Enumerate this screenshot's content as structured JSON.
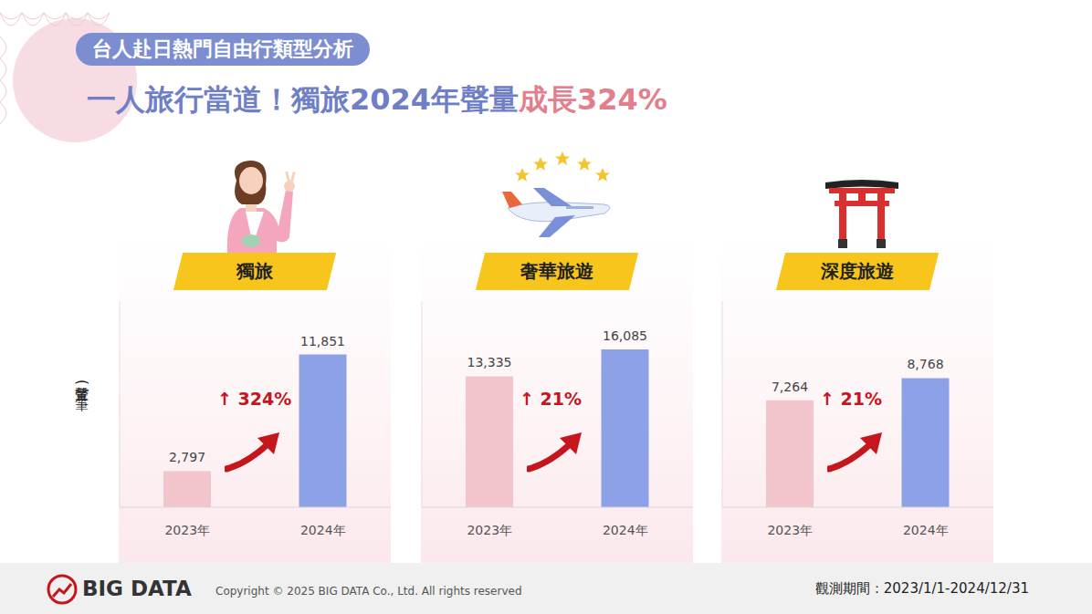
{
  "header": {
    "tag": "台人赴日熱門自由行類型分析",
    "headline": "一人旅行當道！獨旅2024年聲量",
    "headline_highlight": "成長324%"
  },
  "y_label": "聲量(筆)",
  "chart_data": [
    {
      "type": "bar",
      "title": "獨旅",
      "categories": [
        "2023年",
        "2024年"
      ],
      "values": [
        2797,
        11851
      ],
      "value_labels": [
        "2,797",
        "11,851"
      ],
      "colors": [
        "#f2c4cc",
        "#8da2e6"
      ],
      "annotation": "↑ 324%",
      "ylim": [
        0,
        16000
      ],
      "yticks": [
        0,
        16000
      ],
      "tick_labels": "x",
      "grid": false,
      "data_labels": true
    },
    {
      "type": "bar",
      "title": "奢華旅遊",
      "categories": [
        "2023年",
        "2024年"
      ],
      "values": [
        13335,
        16085
      ],
      "value_labels": [
        "13,335",
        "16,085"
      ],
      "colors": [
        "#f2c4cc",
        "#8da2e6"
      ],
      "annotation": "↑ 21%",
      "ylim": [
        0,
        21000
      ],
      "yticks": [
        0,
        21000
      ],
      "tick_labels": "x",
      "grid": false,
      "data_labels": true
    },
    {
      "type": "bar",
      "title": "深度旅遊",
      "categories": [
        "2023年",
        "2024年"
      ],
      "values": [
        7264,
        8768
      ],
      "value_labels": [
        "7,264",
        "8,768"
      ],
      "colors": [
        "#f2c4cc",
        "#8da2e6"
      ],
      "annotation": "↑ 21%",
      "ylim": [
        0,
        14000
      ],
      "yticks": [
        0,
        14000
      ],
      "tick_labels": "x",
      "grid": false,
      "data_labels": true
    }
  ],
  "footer": {
    "logo": "BIG DATA",
    "copyright": "Copyright © 2025 BIG DATA Co., Ltd. All rights reserved",
    "period": "觀測期間：2023/1/1-2024/12/31"
  }
}
